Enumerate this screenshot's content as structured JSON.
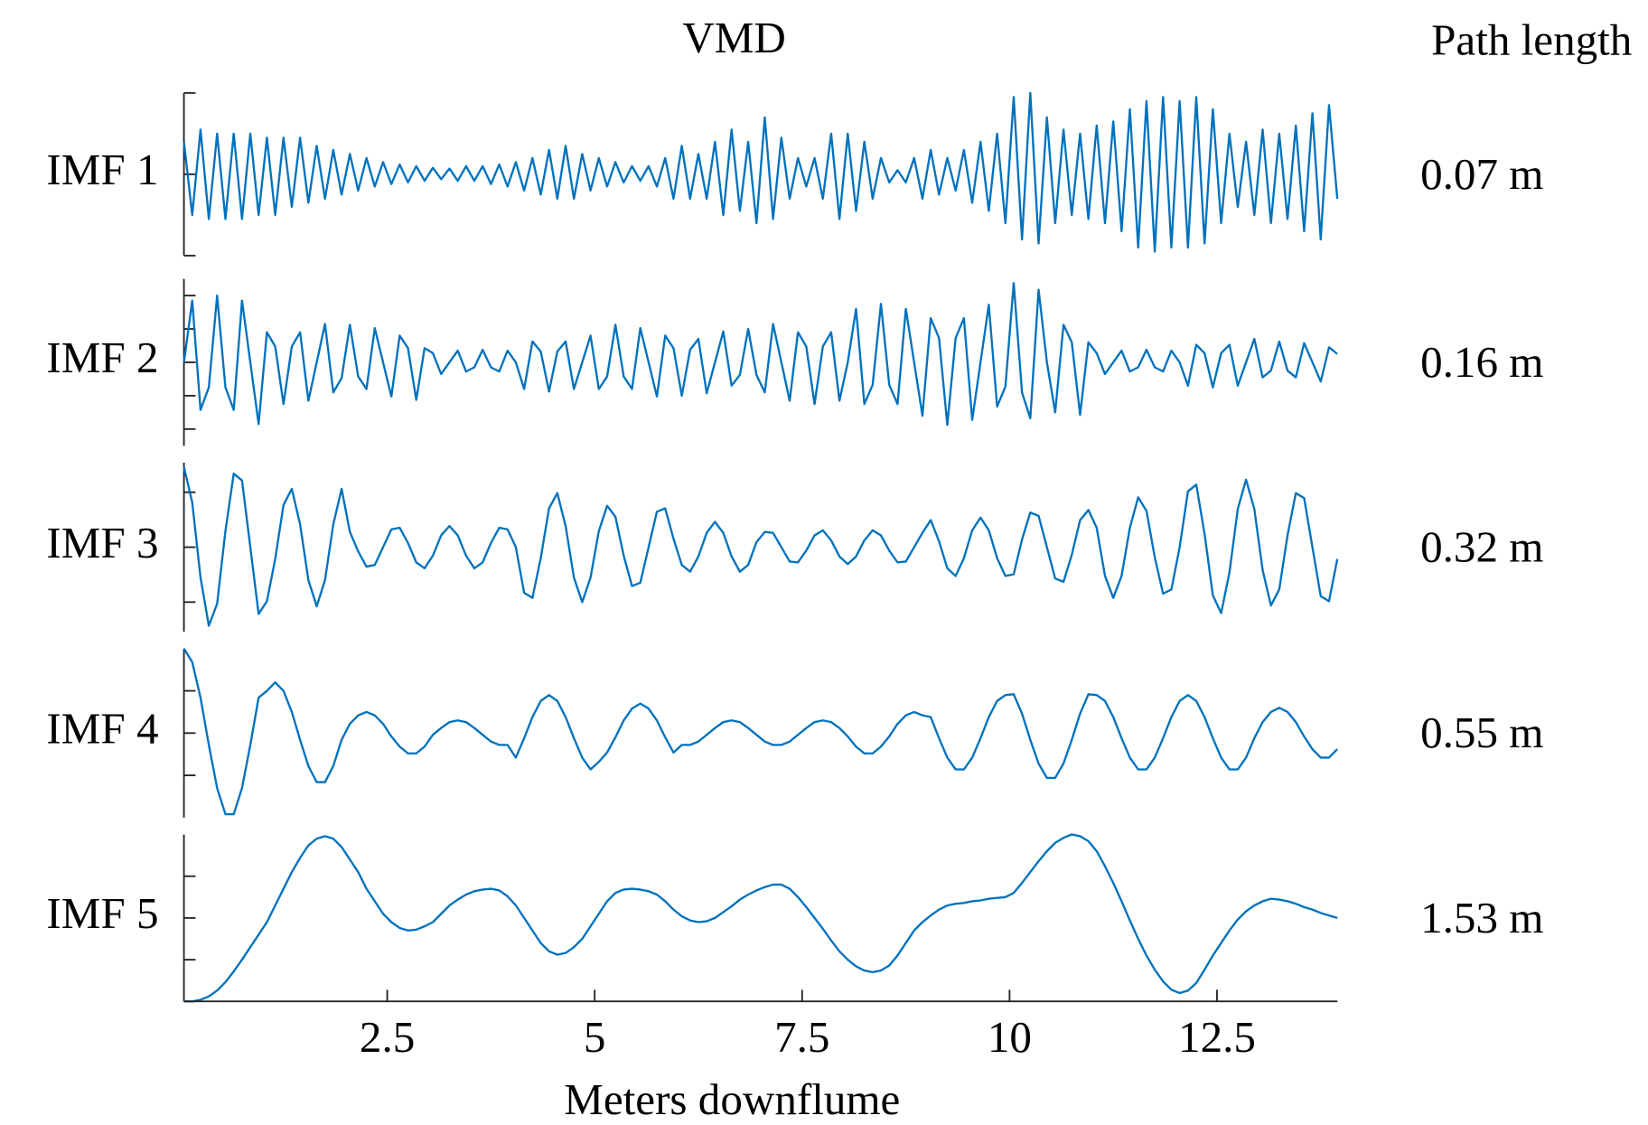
{
  "chart_data": {
    "type": "line",
    "title": "VMD",
    "side_title": "Path length",
    "xlabel": "Meters downflume",
    "xlim": [
      0.05,
      13.95
    ],
    "xticks": [
      2.5,
      5,
      7.5,
      10,
      12.5
    ],
    "x": [
      0.05,
      0.15,
      0.25,
      0.35,
      0.45,
      0.55,
      0.65,
      0.75,
      0.85,
      0.95,
      1.05,
      1.15,
      1.25,
      1.35,
      1.45,
      1.55,
      1.65,
      1.75,
      1.85,
      1.95,
      2.05,
      2.15,
      2.25,
      2.35,
      2.45,
      2.55,
      2.65,
      2.75,
      2.85,
      2.95,
      3.05,
      3.15,
      3.25,
      3.35,
      3.45,
      3.55,
      3.65,
      3.75,
      3.85,
      3.95,
      4.05,
      4.15,
      4.25,
      4.35,
      4.45,
      4.55,
      4.65,
      4.75,
      4.85,
      4.95,
      5.05,
      5.15,
      5.25,
      5.35,
      5.45,
      5.55,
      5.65,
      5.75,
      5.85,
      5.95,
      6.05,
      6.15,
      6.25,
      6.35,
      6.45,
      6.55,
      6.65,
      6.75,
      6.85,
      6.95,
      7.05,
      7.15,
      7.25,
      7.35,
      7.45,
      7.55,
      7.65,
      7.75,
      7.85,
      7.95,
      8.05,
      8.15,
      8.25,
      8.35,
      8.45,
      8.55,
      8.65,
      8.75,
      8.85,
      8.95,
      9.05,
      9.15,
      9.25,
      9.35,
      9.45,
      9.55,
      9.65,
      9.75,
      9.85,
      9.95,
      10.05,
      10.15,
      10.25,
      10.35,
      10.45,
      10.55,
      10.65,
      10.75,
      10.85,
      10.95,
      11.05,
      11.15,
      11.25,
      11.35,
      11.45,
      11.55,
      11.65,
      11.75,
      11.85,
      11.95,
      12.05,
      12.15,
      12.25,
      12.35,
      12.45,
      12.55,
      12.65,
      12.75,
      12.85,
      12.95,
      13.05,
      13.15,
      13.25,
      13.35,
      13.45,
      13.55,
      13.65,
      13.75,
      13.85,
      13.95
    ],
    "series": [
      {
        "name": "IMF 1",
        "annotation": "0.07 m",
        "color": "#0072bd",
        "ylim": [
          -1,
          1
        ],
        "yticks": [
          -1,
          0,
          1
        ],
        "values": [
          0.4,
          -0.5,
          0.55,
          -0.55,
          0.5,
          -0.55,
          0.5,
          -0.55,
          0.5,
          -0.5,
          0.45,
          -0.5,
          0.45,
          -0.4,
          0.45,
          -0.35,
          0.35,
          -0.3,
          0.3,
          -0.25,
          0.25,
          -0.2,
          0.2,
          -0.15,
          0.15,
          -0.12,
          0.12,
          -0.1,
          0.1,
          -0.08,
          0.08,
          -0.06,
          0.07,
          -0.08,
          0.1,
          -0.08,
          0.1,
          -0.12,
          0.12,
          -0.15,
          0.15,
          -0.2,
          0.2,
          -0.25,
          0.3,
          -0.3,
          0.35,
          -0.3,
          0.25,
          -0.2,
          0.2,
          -0.15,
          0.15,
          -0.1,
          0.1,
          -0.08,
          0.1,
          -0.15,
          0.2,
          -0.3,
          0.35,
          -0.3,
          0.25,
          -0.3,
          0.4,
          -0.5,
          0.55,
          -0.45,
          0.4,
          -0.6,
          0.7,
          -0.55,
          0.45,
          -0.3,
          0.2,
          -0.15,
          0.2,
          -0.3,
          0.5,
          -0.55,
          0.5,
          -0.45,
          0.4,
          -0.3,
          0.2,
          -0.1,
          0.05,
          -0.1,
          0.2,
          -0.3,
          0.3,
          -0.25,
          0.2,
          -0.2,
          0.3,
          -0.35,
          0.4,
          -0.45,
          0.5,
          -0.6,
          0.95,
          -0.8,
          1.0,
          -0.85,
          0.7,
          -0.6,
          0.55,
          -0.5,
          0.5,
          -0.55,
          0.6,
          -0.6,
          0.65,
          -0.7,
          0.8,
          -0.9,
          0.9,
          -0.95,
          0.95,
          -0.9,
          0.9,
          -0.9,
          0.95,
          -0.85,
          0.8,
          -0.6,
          0.5,
          -0.4,
          0.4,
          -0.5,
          0.55,
          -0.6,
          0.5,
          -0.55,
          0.6,
          -0.7,
          0.75,
          -0.8,
          0.85,
          -0.3
        ]
      },
      {
        "name": "IMF 2",
        "annotation": "0.16 m",
        "color": "#0072bd",
        "ylim": [
          -1,
          1
        ],
        "yticks": [
          -0.8,
          -0.4,
          0,
          0.4,
          0.8
        ],
        "values": [
          0,
          0.74,
          -0.57,
          -0.3,
          0.8,
          -0.3,
          -0.57,
          0.74,
          0,
          -0.74,
          0.36,
          0.19,
          -0.5,
          0.19,
          0.36,
          -0.46,
          0,
          0.46,
          -0.36,
          -0.19,
          0.45,
          -0.17,
          -0.32,
          0.41,
          0,
          -0.41,
          0.32,
          0.17,
          -0.45,
          0.17,
          0.11,
          -0.14,
          0,
          0.14,
          -0.11,
          -0.06,
          0.15,
          -0.06,
          -0.11,
          0.14,
          0,
          -0.32,
          0.25,
          0.13,
          -0.35,
          0.13,
          0.25,
          -0.32,
          0,
          0.32,
          -0.32,
          -0.17,
          0.45,
          -0.17,
          -0.32,
          0.41,
          0,
          -0.41,
          0.32,
          0.17,
          -0.4,
          0.15,
          0.28,
          -0.37,
          0,
          0.37,
          -0.28,
          -0.15,
          0.4,
          -0.15,
          -0.36,
          0.46,
          0,
          -0.46,
          0.36,
          0.19,
          -0.5,
          0.19,
          0.36,
          -0.46,
          0,
          0.64,
          -0.5,
          -0.27,
          0.7,
          -0.27,
          -0.5,
          0.64,
          0,
          -0.64,
          0.53,
          0.29,
          -0.75,
          0.29,
          0.53,
          -0.69,
          0,
          0.69,
          -0.53,
          -0.29,
          0.95,
          -0.36,
          -0.67,
          0.87,
          0,
          -0.6,
          0.45,
          0.24,
          -0.63,
          0.24,
          0.11,
          -0.14,
          0,
          0.14,
          -0.11,
          -0.06,
          0.15,
          -0.06,
          -0.11,
          0.14,
          0,
          -0.28,
          0.21,
          0.11,
          -0.3,
          0.11,
          0.21,
          -0.28,
          0,
          0.28,
          -0.18,
          -0.1,
          0.25,
          -0.1,
          -0.18,
          0.23,
          0,
          -0.23,
          0.18,
          0.1
        ]
      },
      {
        "name": "IMF 3",
        "annotation": "0.32 m",
        "color": "#0072bd",
        "ylim": [
          -1,
          1
        ],
        "yticks": [
          -0.65,
          0,
          0.65
        ],
        "values": [
          0.95,
          0.53,
          -0.36,
          -0.93,
          -0.67,
          0.19,
          0.87,
          0.79,
          0,
          -0.79,
          -0.64,
          -0.14,
          0.5,
          0.69,
          0.27,
          -0.39,
          -0.7,
          -0.39,
          0.27,
          0.69,
          0.18,
          -0.05,
          -0.23,
          -0.21,
          0,
          0.21,
          0.23,
          0.05,
          -0.18,
          -0.25,
          -0.1,
          0.14,
          0.25,
          0.14,
          -0.1,
          -0.25,
          -0.18,
          0.05,
          0.23,
          0.21,
          0,
          -0.54,
          -0.6,
          -0.13,
          0.46,
          0.64,
          0.25,
          -0.36,
          -0.65,
          -0.36,
          0.19,
          0.49,
          0.36,
          -0.1,
          -0.46,
          -0.42,
          0,
          0.42,
          0.46,
          0.1,
          -0.21,
          -0.29,
          -0.11,
          0.17,
          0.3,
          0.17,
          -0.11,
          -0.29,
          -0.21,
          0.06,
          0.18,
          0.17,
          0,
          -0.17,
          -0.18,
          -0.04,
          0.14,
          0.2,
          0.08,
          -0.11,
          -0.2,
          -0.11,
          0.08,
          0.2,
          0.14,
          -0.04,
          -0.18,
          -0.17,
          0,
          0.17,
          0.32,
          0.07,
          -0.25,
          -0.34,
          -0.13,
          0.2,
          0.35,
          0.2,
          -0.13,
          -0.34,
          -0.32,
          0.09,
          0.41,
          0.37,
          0,
          -0.37,
          -0.41,
          -0.09,
          0.32,
          0.44,
          0.23,
          -0.34,
          -0.6,
          -0.34,
          0.23,
          0.59,
          0.43,
          -0.12,
          -0.55,
          -0.5,
          0,
          0.66,
          0.74,
          0.16,
          -0.57,
          -0.78,
          -0.3,
          0.45,
          0.8,
          0.45,
          -0.27,
          -0.69,
          -0.5,
          0.14,
          0.64,
          0.58,
          0,
          -0.58,
          -0.64,
          -0.14
        ]
      },
      {
        "name": "IMF 4",
        "annotation": "0.55 m",
        "color": "#0072bd",
        "ylim": [
          -1,
          1
        ],
        "yticks": [
          -0.5,
          0,
          0.5
        ],
        "values": [
          1,
          0.84,
          0.42,
          -0.14,
          -0.65,
          -0.96,
          -0.96,
          -0.65,
          -0.14,
          0.42,
          0.5,
          0.6,
          0.5,
          0.25,
          -0.08,
          -0.39,
          -0.58,
          -0.58,
          -0.39,
          -0.08,
          0.11,
          0.21,
          0.25,
          0.21,
          0.11,
          -0.04,
          -0.16,
          -0.24,
          -0.24,
          -0.16,
          -0.02,
          0.06,
          0.13,
          0.15,
          0.13,
          0.06,
          -0.02,
          -0.1,
          -0.14,
          -0.14,
          -0.29,
          -0.06,
          0.19,
          0.38,
          0.45,
          0.38,
          0.19,
          -0.06,
          -0.29,
          -0.43,
          -0.34,
          -0.23,
          -0.05,
          0.15,
          0.29,
          0.35,
          0.29,
          0.15,
          -0.05,
          -0.23,
          -0.14,
          -0.14,
          -0.1,
          -0.02,
          0.06,
          0.13,
          0.15,
          0.13,
          0.06,
          -0.02,
          -0.1,
          -0.14,
          -0.14,
          -0.1,
          -0.02,
          0.06,
          0.13,
          0.15,
          0.13,
          0.06,
          -0.04,
          -0.16,
          -0.24,
          -0.24,
          -0.16,
          -0.04,
          0.11,
          0.21,
          0.25,
          0.21,
          0.19,
          -0.06,
          -0.29,
          -0.43,
          -0.43,
          -0.29,
          -0.06,
          0.19,
          0.38,
          0.45,
          0.46,
          0.23,
          -0.08,
          -0.36,
          -0.53,
          -0.53,
          -0.36,
          -0.08,
          0.23,
          0.46,
          0.45,
          0.38,
          0.19,
          -0.06,
          -0.29,
          -0.43,
          -0.43,
          -0.29,
          -0.06,
          0.19,
          0.38,
          0.45,
          0.38,
          0.19,
          -0.06,
          -0.29,
          -0.43,
          -0.43,
          -0.29,
          -0.06,
          0.13,
          0.25,
          0.3,
          0.25,
          0.13,
          -0.04,
          -0.19,
          -0.29,
          -0.29,
          -0.19
        ]
      },
      {
        "name": "IMF 5",
        "annotation": "1.53 m",
        "color": "#0072bd",
        "ylim": [
          -1,
          1
        ],
        "yticks": [
          -1,
          -0.5,
          0,
          0.5
        ],
        "values": [
          -1,
          -1,
          -0.98,
          -0.94,
          -0.87,
          -0.77,
          -0.64,
          -0.5,
          -0.35,
          -0.2,
          -0.05,
          0.15,
          0.35,
          0.55,
          0.72,
          0.87,
          0.95,
          0.98,
          0.95,
          0.85,
          0.7,
          0.55,
          0.35,
          0.2,
          0.05,
          -0.05,
          -0.12,
          -0.15,
          -0.14,
          -0.1,
          -0.05,
          0.05,
          0.15,
          0.22,
          0.28,
          0.32,
          0.34,
          0.35,
          0.33,
          0.26,
          0.15,
          0,
          -0.15,
          -0.3,
          -0.4,
          -0.44,
          -0.42,
          -0.35,
          -0.25,
          -0.1,
          0.05,
          0.2,
          0.3,
          0.34,
          0.35,
          0.34,
          0.32,
          0.28,
          0.2,
          0.1,
          0.02,
          -0.03,
          -0.05,
          -0.04,
          0,
          0.07,
          0.14,
          0.22,
          0.28,
          0.33,
          0.37,
          0.4,
          0.4,
          0.35,
          0.25,
          0.13,
          0,
          -0.13,
          -0.27,
          -0.4,
          -0.5,
          -0.58,
          -0.63,
          -0.65,
          -0.63,
          -0.57,
          -0.45,
          -0.3,
          -0.15,
          -0.05,
          0.03,
          0.1,
          0.15,
          0.17,
          0.18,
          0.2,
          0.21,
          0.23,
          0.24,
          0.25,
          0.3,
          0.42,
          0.55,
          0.68,
          0.8,
          0.9,
          0.96,
          1,
          0.98,
          0.92,
          0.8,
          0.62,
          0.42,
          0.2,
          -0.03,
          -0.25,
          -0.45,
          -0.62,
          -0.76,
          -0.86,
          -0.9,
          -0.87,
          -0.78,
          -0.62,
          -0.45,
          -0.3,
          -0.15,
          -0.02,
          0.08,
          0.15,
          0.2,
          0.23,
          0.22,
          0.2,
          0.17,
          0.13,
          0.1,
          0.06,
          0.03,
          0
        ]
      }
    ]
  }
}
